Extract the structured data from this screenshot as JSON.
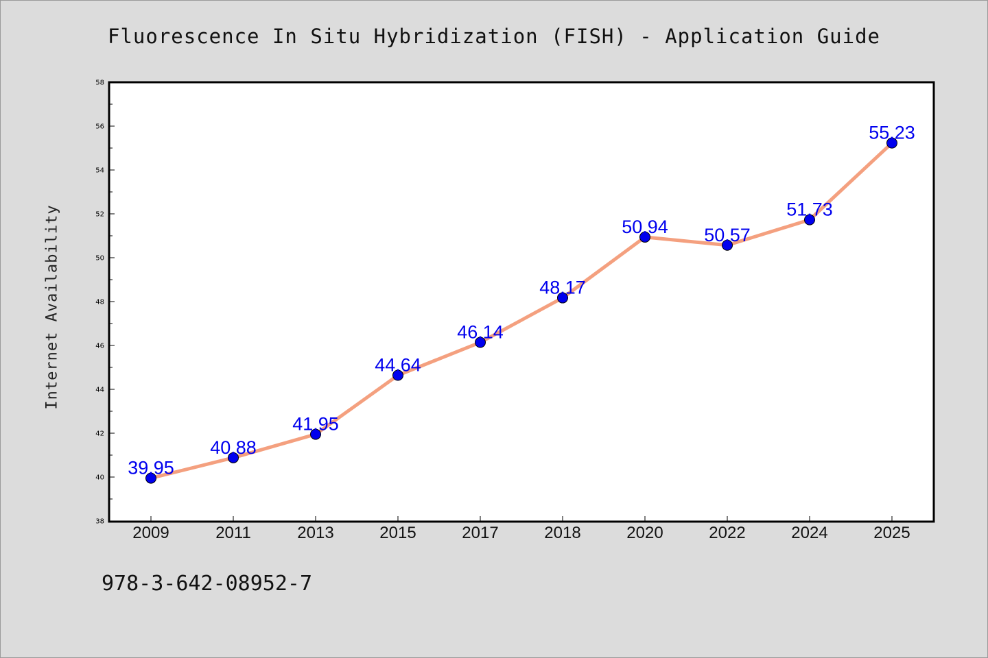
{
  "chart_data": {
    "type": "line",
    "title": "Fluorescence In Situ Hybridization (FISH) - Application Guide",
    "xlabel": "",
    "ylabel": "Internet Availability",
    "categories": [
      "2009",
      "2011",
      "2013",
      "2015",
      "2017",
      "2018",
      "2020",
      "2022",
      "2024",
      "2025"
    ],
    "series": [
      {
        "values": [
          39.95,
          40.88,
          41.95,
          44.64,
          46.14,
          48.17,
          50.94,
          50.57,
          51.73,
          55.23
        ],
        "data_labels": [
          "39.95",
          "40.88",
          "41.95",
          "44.64",
          "46.14",
          "48.17",
          "50.94",
          "50.57",
          "51.73",
          "55.23"
        ]
      }
    ],
    "ylim": [
      38,
      58
    ],
    "yticks": [
      "38",
      "40",
      "42",
      "44",
      "46",
      "48",
      "50",
      "52",
      "54",
      "56",
      "58"
    ],
    "grid": false,
    "legend": "none",
    "colors": {
      "line": "#f4a07f",
      "marker": "#0000ee",
      "data_label": "#0000ee",
      "plot_background": "#ffffff",
      "page_background": "#dcdcdc"
    }
  },
  "footer": {
    "code": "978-3-642-08952-7"
  }
}
